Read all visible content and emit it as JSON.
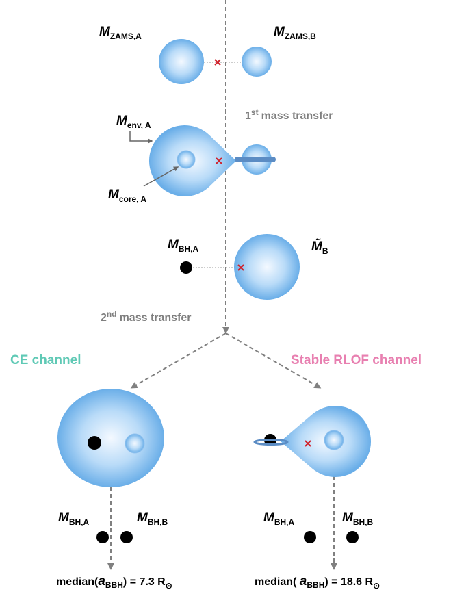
{
  "labels": {
    "zams_a": {
      "symbol": "M",
      "sub": "ZAMS,A"
    },
    "zams_b": {
      "symbol": "M",
      "sub": "ZAMS,B"
    },
    "env_a": {
      "symbol": "M",
      "sub": "env, A"
    },
    "core_a": {
      "symbol": "M",
      "sub": "core, A"
    },
    "bh_a_mid": {
      "symbol": "M",
      "sub": "BH,A"
    },
    "b_tilde": {
      "symbol": "M̃",
      "sub": "B"
    },
    "ce_bh_a": {
      "symbol": "M",
      "sub": "BH,A"
    },
    "ce_bh_b": {
      "symbol": "M",
      "sub": "BH,B"
    },
    "rlof_bh_a": {
      "symbol": "M",
      "sub": "BH,A"
    },
    "rlof_bh_b": {
      "symbol": "M",
      "sub": "BH,B"
    }
  },
  "transfers": [
    {
      "num": "1",
      "sup": "st",
      "text": "mass transfer"
    },
    {
      "num": "2",
      "sup": "nd",
      "text": "mass transfer"
    }
  ],
  "channels": {
    "ce": "CE channel",
    "rlof": "Stable RLOF channel"
  },
  "medians": [
    {
      "prefix": "median(",
      "symbol": "a",
      "sub": "BBH",
      "suffix": ") = 7.3 R",
      "sun": "⊙"
    },
    {
      "prefix": "median( ",
      "symbol": "a",
      "sub": "BBH",
      "suffix": ") = 18.6 R",
      "sun": "⊙"
    }
  ]
}
